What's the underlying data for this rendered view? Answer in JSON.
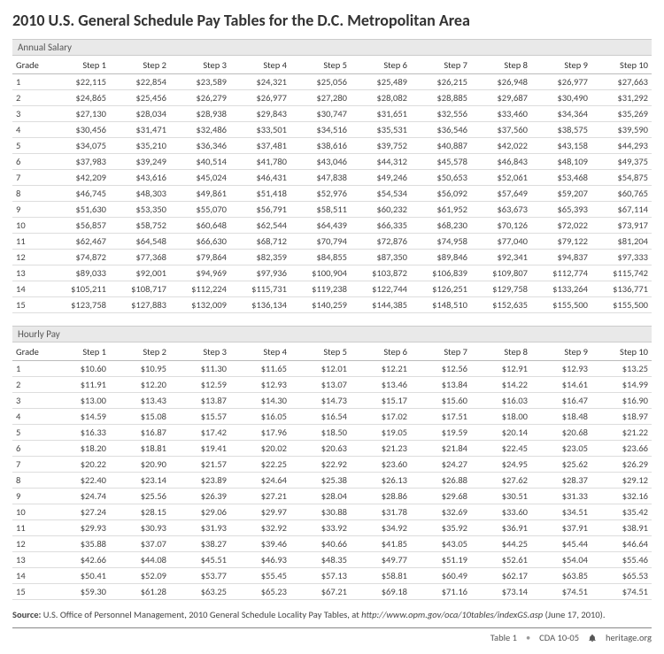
{
  "title": "2010 U.S. General Schedule Pay Tables for the D.C. Metropolitan Area",
  "section_annual": "Annual Salary",
  "section_hourly": "Hourly Pay",
  "col_grade": "Grade",
  "steps": [
    "Step 1",
    "Step 2",
    "Step 3",
    "Step 4",
    "Step 5",
    "Step 6",
    "Step 7",
    "Step 8",
    "Step 9",
    "Step 10"
  ],
  "annual": {
    "grades": [
      "1",
      "2",
      "3",
      "4",
      "5",
      "6",
      "7",
      "8",
      "9",
      "10",
      "11",
      "12",
      "13",
      "14",
      "15"
    ],
    "rows": [
      [
        "$22,115",
        "$22,854",
        "$23,589",
        "$24,321",
        "$25,056",
        "$25,489",
        "$26,215",
        "$26,948",
        "$26,977",
        "$27,663"
      ],
      [
        "$24,865",
        "$25,456",
        "$26,279",
        "$26,977",
        "$27,280",
        "$28,082",
        "$28,885",
        "$29,687",
        "$30,490",
        "$31,292"
      ],
      [
        "$27,130",
        "$28,034",
        "$28,938",
        "$29,843",
        "$30,747",
        "$31,651",
        "$32,556",
        "$33,460",
        "$34,364",
        "$35,269"
      ],
      [
        "$30,456",
        "$31,471",
        "$32,486",
        "$33,501",
        "$34,516",
        "$35,531",
        "$36,546",
        "$37,560",
        "$38,575",
        "$39,590"
      ],
      [
        "$34,075",
        "$35,210",
        "$36,346",
        "$37,481",
        "$38,616",
        "$39,752",
        "$40,887",
        "$42,022",
        "$43,158",
        "$44,293"
      ],
      [
        "$37,983",
        "$39,249",
        "$40,514",
        "$41,780",
        "$43,046",
        "$44,312",
        "$45,578",
        "$46,843",
        "$48,109",
        "$49,375"
      ],
      [
        "$42,209",
        "$43,616",
        "$45,024",
        "$46,431",
        "$47,838",
        "$49,246",
        "$50,653",
        "$52,061",
        "$53,468",
        "$54,875"
      ],
      [
        "$46,745",
        "$48,303",
        "$49,861",
        "$51,418",
        "$52,976",
        "$54,534",
        "$56,092",
        "$57,649",
        "$59,207",
        "$60,765"
      ],
      [
        "$51,630",
        "$53,350",
        "$55,070",
        "$56,791",
        "$58,511",
        "$60,232",
        "$61,952",
        "$63,673",
        "$65,393",
        "$67,114"
      ],
      [
        "$56,857",
        "$58,752",
        "$60,648",
        "$62,544",
        "$64,439",
        "$66,335",
        "$68,230",
        "$70,126",
        "$72,022",
        "$73,917"
      ],
      [
        "$62,467",
        "$64,548",
        "$66,630",
        "$68,712",
        "$70,794",
        "$72,876",
        "$74,958",
        "$77,040",
        "$79,122",
        "$81,204"
      ],
      [
        "$74,872",
        "$77,368",
        "$79,864",
        "$82,359",
        "$84,855",
        "$87,350",
        "$89,846",
        "$92,341",
        "$94,837",
        "$97,333"
      ],
      [
        "$89,033",
        "$92,001",
        "$94,969",
        "$97,936",
        "$100,904",
        "$103,872",
        "$106,839",
        "$109,807",
        "$112,774",
        "$115,742"
      ],
      [
        "$105,211",
        "$108,717",
        "$112,224",
        "$115,731",
        "$119,238",
        "$122,744",
        "$126,251",
        "$129,758",
        "$133,264",
        "$136,771"
      ],
      [
        "$123,758",
        "$127,883",
        "$132,009",
        "$136,134",
        "$140,259",
        "$144,385",
        "$148,510",
        "$152,635",
        "$155,500",
        "$155,500"
      ]
    ]
  },
  "hourly": {
    "grades": [
      "1",
      "2",
      "3",
      "4",
      "5",
      "6",
      "7",
      "8",
      "9",
      "10",
      "11",
      "12",
      "13",
      "14",
      "15"
    ],
    "rows": [
      [
        "$10.60",
        "$10.95",
        "$11.30",
        "$11.65",
        "$12.01",
        "$12.21",
        "$12.56",
        "$12.91",
        "$12.93",
        "$13.25"
      ],
      [
        "$11.91",
        "$12.20",
        "$12.59",
        "$12.93",
        "$13.07",
        "$13.46",
        "$13.84",
        "$14.22",
        "$14.61",
        "$14.99"
      ],
      [
        "$13.00",
        "$13.43",
        "$13.87",
        "$14.30",
        "$14.73",
        "$15.17",
        "$15.60",
        "$16.03",
        "$16.47",
        "$16.90"
      ],
      [
        "$14.59",
        "$15.08",
        "$15.57",
        "$16.05",
        "$16.54",
        "$17.02",
        "$17.51",
        "$18.00",
        "$18.48",
        "$18.97"
      ],
      [
        "$16.33",
        "$16.87",
        "$17.42",
        "$17.96",
        "$18.50",
        "$19.05",
        "$19.59",
        "$20.14",
        "$20.68",
        "$21.22"
      ],
      [
        "$18.20",
        "$18.81",
        "$19.41",
        "$20.02",
        "$20.63",
        "$21.23",
        "$21.84",
        "$22.45",
        "$23.05",
        "$23.66"
      ],
      [
        "$20.22",
        "$20.90",
        "$21.57",
        "$22.25",
        "$22.92",
        "$23.60",
        "$24.27",
        "$24.95",
        "$25.62",
        "$26.29"
      ],
      [
        "$22.40",
        "$23.14",
        "$23.89",
        "$24.64",
        "$25.38",
        "$26.13",
        "$26.88",
        "$27.62",
        "$28.37",
        "$29.12"
      ],
      [
        "$24.74",
        "$25.56",
        "$26.39",
        "$27.21",
        "$28.04",
        "$28.86",
        "$29.68",
        "$30.51",
        "$31.33",
        "$32.16"
      ],
      [
        "$27.24",
        "$28.15",
        "$29.06",
        "$29.97",
        "$30.88",
        "$31.78",
        "$32.69",
        "$33.60",
        "$34.51",
        "$35.42"
      ],
      [
        "$29.93",
        "$30.93",
        "$31.93",
        "$32.92",
        "$33.92",
        "$34.92",
        "$35.92",
        "$36.91",
        "$37.91",
        "$38.91"
      ],
      [
        "$35.88",
        "$37.07",
        "$38.27",
        "$39.46",
        "$40.66",
        "$41.85",
        "$43.05",
        "$44.25",
        "$45.44",
        "$46.64"
      ],
      [
        "$42.66",
        "$44.08",
        "$45.51",
        "$46.93",
        "$48.35",
        "$49.77",
        "$51.19",
        "$52.61",
        "$54.04",
        "$55.46"
      ],
      [
        "$50.41",
        "$52.09",
        "$53.77",
        "$55.45",
        "$57.13",
        "$58.81",
        "$60.49",
        "$62.17",
        "$63.85",
        "$65.53"
      ],
      [
        "$59.30",
        "$61.28",
        "$63.25",
        "$65.23",
        "$67.21",
        "$69.18",
        "$71.16",
        "$73.14",
        "$74.51",
        "$74.51"
      ]
    ]
  },
  "source_label": "Source:",
  "source_text_a": " U.S. Office of Personnel Management, 2010 General Schedule Locality Pay Tables, at ",
  "source_url": "http://www.opm.gov/oca/10tables/indexGS.asp",
  "source_text_b": " (June 17, 2010).",
  "footer_table": "Table 1",
  "footer_cda": "CDA 10-05",
  "footer_site": "heritage.org",
  "colors": {
    "header_bg": "#e9e9e9",
    "row_border": "#dddddd",
    "text": "#444444"
  }
}
